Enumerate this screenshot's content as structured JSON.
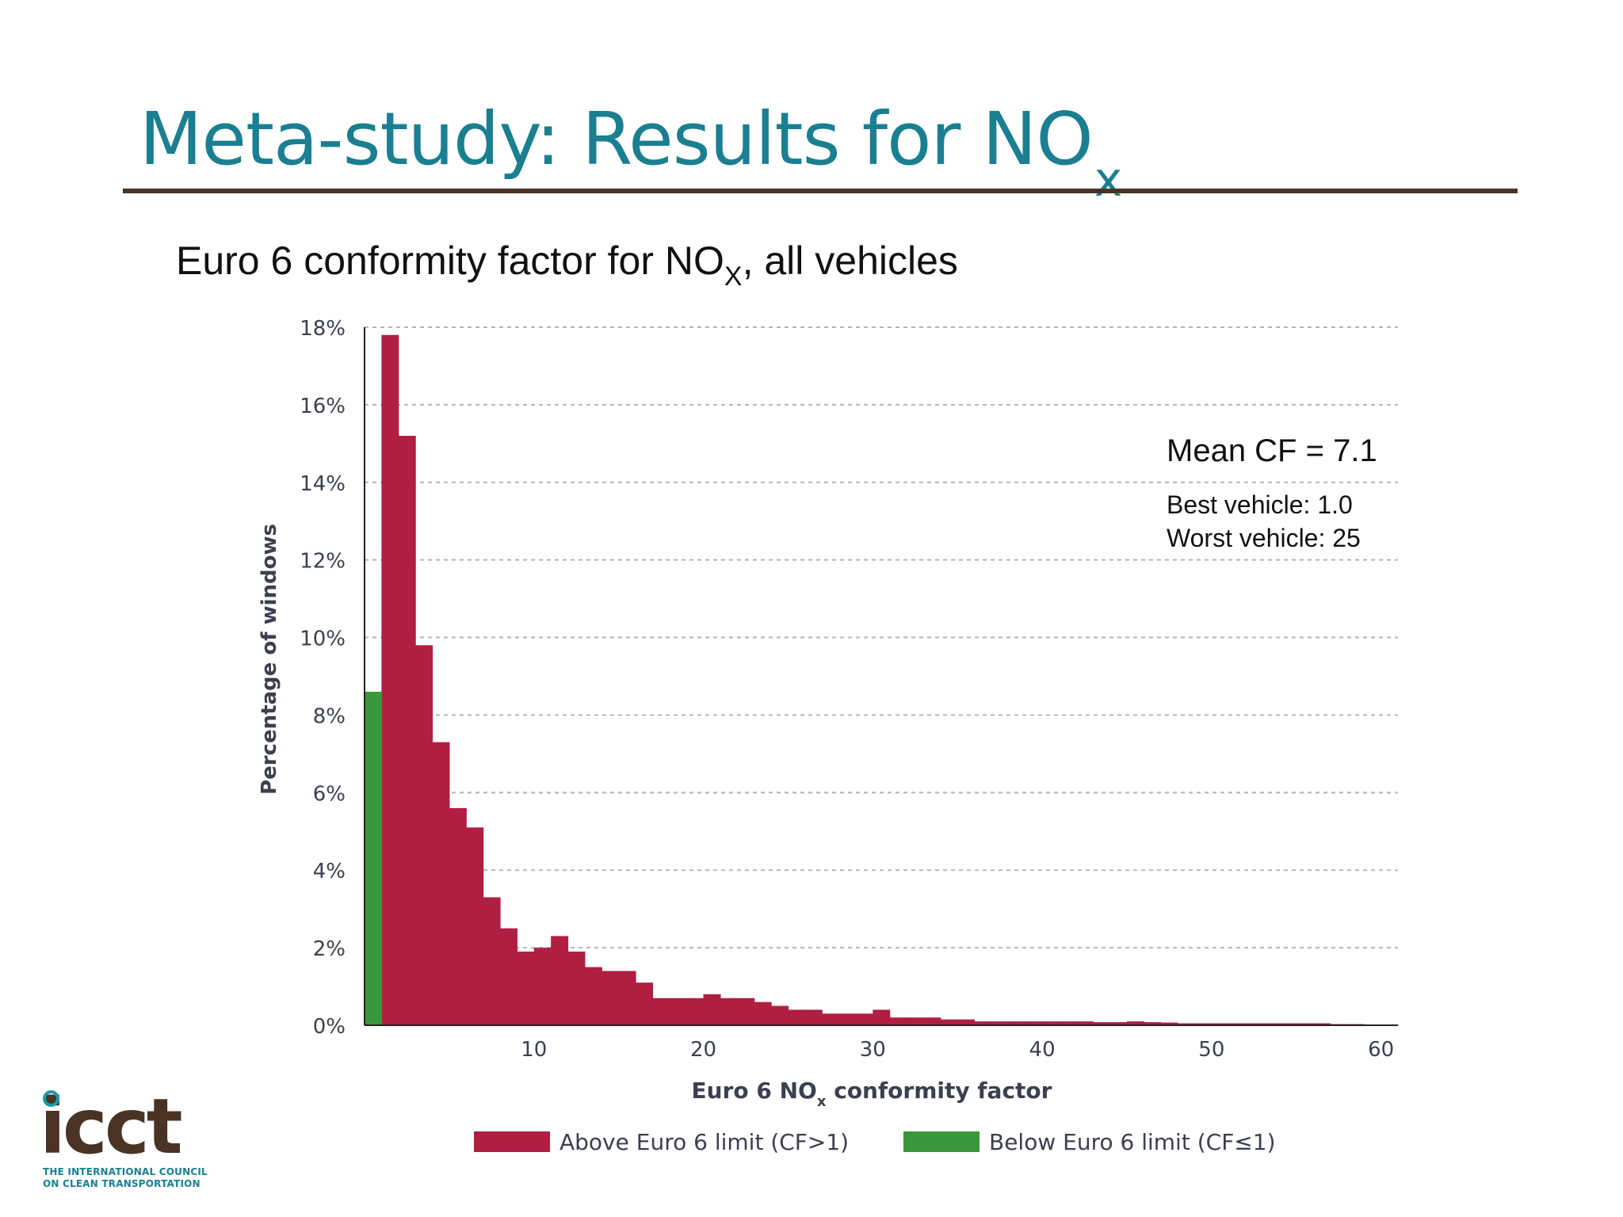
{
  "slide": {
    "title": "Meta-study: Results for NO",
    "title_sub": "x",
    "title_color": "#1a7f91",
    "rule_color": "#4a3324"
  },
  "chart_data": {
    "type": "bar",
    "title": "Euro 6 conformity factor for NO",
    "title_sub": "X",
    "title_suffix": ", all vehicles",
    "xlabel": "Euro 6 NO",
    "xlabel_sub": "x",
    "xlabel_suffix": " conformity factor",
    "ylabel": "Percentage of windows",
    "ylim": [
      0,
      18
    ],
    "yticks": [
      0,
      2,
      4,
      6,
      8,
      10,
      12,
      14,
      16,
      18
    ],
    "ytick_labels": [
      "0%",
      "2%",
      "4%",
      "6%",
      "8%",
      "10%",
      "12%",
      "14%",
      "16%",
      "18%"
    ],
    "xlim": [
      0,
      61
    ],
    "xticks": [
      10,
      20,
      30,
      40,
      50,
      60
    ],
    "xtick_labels": [
      "10",
      "20",
      "30",
      "40",
      "50",
      "60"
    ],
    "grid": true,
    "bin_width": 1,
    "bin_starts": [
      0,
      1,
      2,
      3,
      4,
      5,
      6,
      7,
      8,
      9,
      10,
      11,
      12,
      13,
      14,
      15,
      16,
      17,
      18,
      19,
      20,
      21,
      22,
      23,
      24,
      25,
      26,
      27,
      28,
      29,
      30,
      31,
      32,
      33,
      34,
      35,
      36,
      37,
      38,
      39,
      40,
      41,
      42,
      43,
      44,
      45,
      46,
      47,
      48,
      49,
      50,
      51,
      52,
      53,
      54,
      55,
      56,
      57,
      58,
      59,
      60
    ],
    "series": [
      {
        "name": "Above Euro 6 limit (CF>1)",
        "color": "#b01e42",
        "values": [
          0,
          17.8,
          15.2,
          9.8,
          7.3,
          5.6,
          5.1,
          3.3,
          2.5,
          1.9,
          2.0,
          2.3,
          1.9,
          1.5,
          1.4,
          1.4,
          1.1,
          0.7,
          0.7,
          0.7,
          0.8,
          0.7,
          0.7,
          0.6,
          0.5,
          0.4,
          0.4,
          0.3,
          0.3,
          0.3,
          0.4,
          0.2,
          0.2,
          0.2,
          0.15,
          0.15,
          0.1,
          0.1,
          0.1,
          0.1,
          0.1,
          0.1,
          0.1,
          0.08,
          0.08,
          0.1,
          0.08,
          0.07,
          0.05,
          0.05,
          0.05,
          0.05,
          0.05,
          0.05,
          0.05,
          0.05,
          0.05,
          0.03,
          0.03,
          0.02,
          0.02
        ]
      },
      {
        "name": "Below Euro 6 limit (CF≤1)",
        "color": "#3a963a",
        "values": [
          8.6,
          0,
          0,
          0,
          0,
          0,
          0,
          0,
          0,
          0,
          0,
          0,
          0,
          0,
          0,
          0,
          0,
          0,
          0,
          0,
          0,
          0,
          0,
          0,
          0,
          0,
          0,
          0,
          0,
          0,
          0,
          0,
          0,
          0,
          0,
          0,
          0,
          0,
          0,
          0,
          0,
          0,
          0,
          0,
          0,
          0,
          0,
          0,
          0,
          0,
          0,
          0,
          0,
          0,
          0,
          0,
          0,
          0,
          0,
          0,
          0
        ]
      }
    ],
    "annotations": {
      "mean": "Mean CF = 7.1",
      "best": "Best vehicle: 1.0",
      "worst": "Worst vehicle: 25"
    },
    "legend_position": "bottom"
  },
  "logo": {
    "word": "icct",
    "line1": "THE INTERNATIONAL COUNCIL",
    "line2": "ON CLEAN TRANSPORTATION",
    "ring_color": "#1a9aa8",
    "word_color": "#4a3324"
  }
}
